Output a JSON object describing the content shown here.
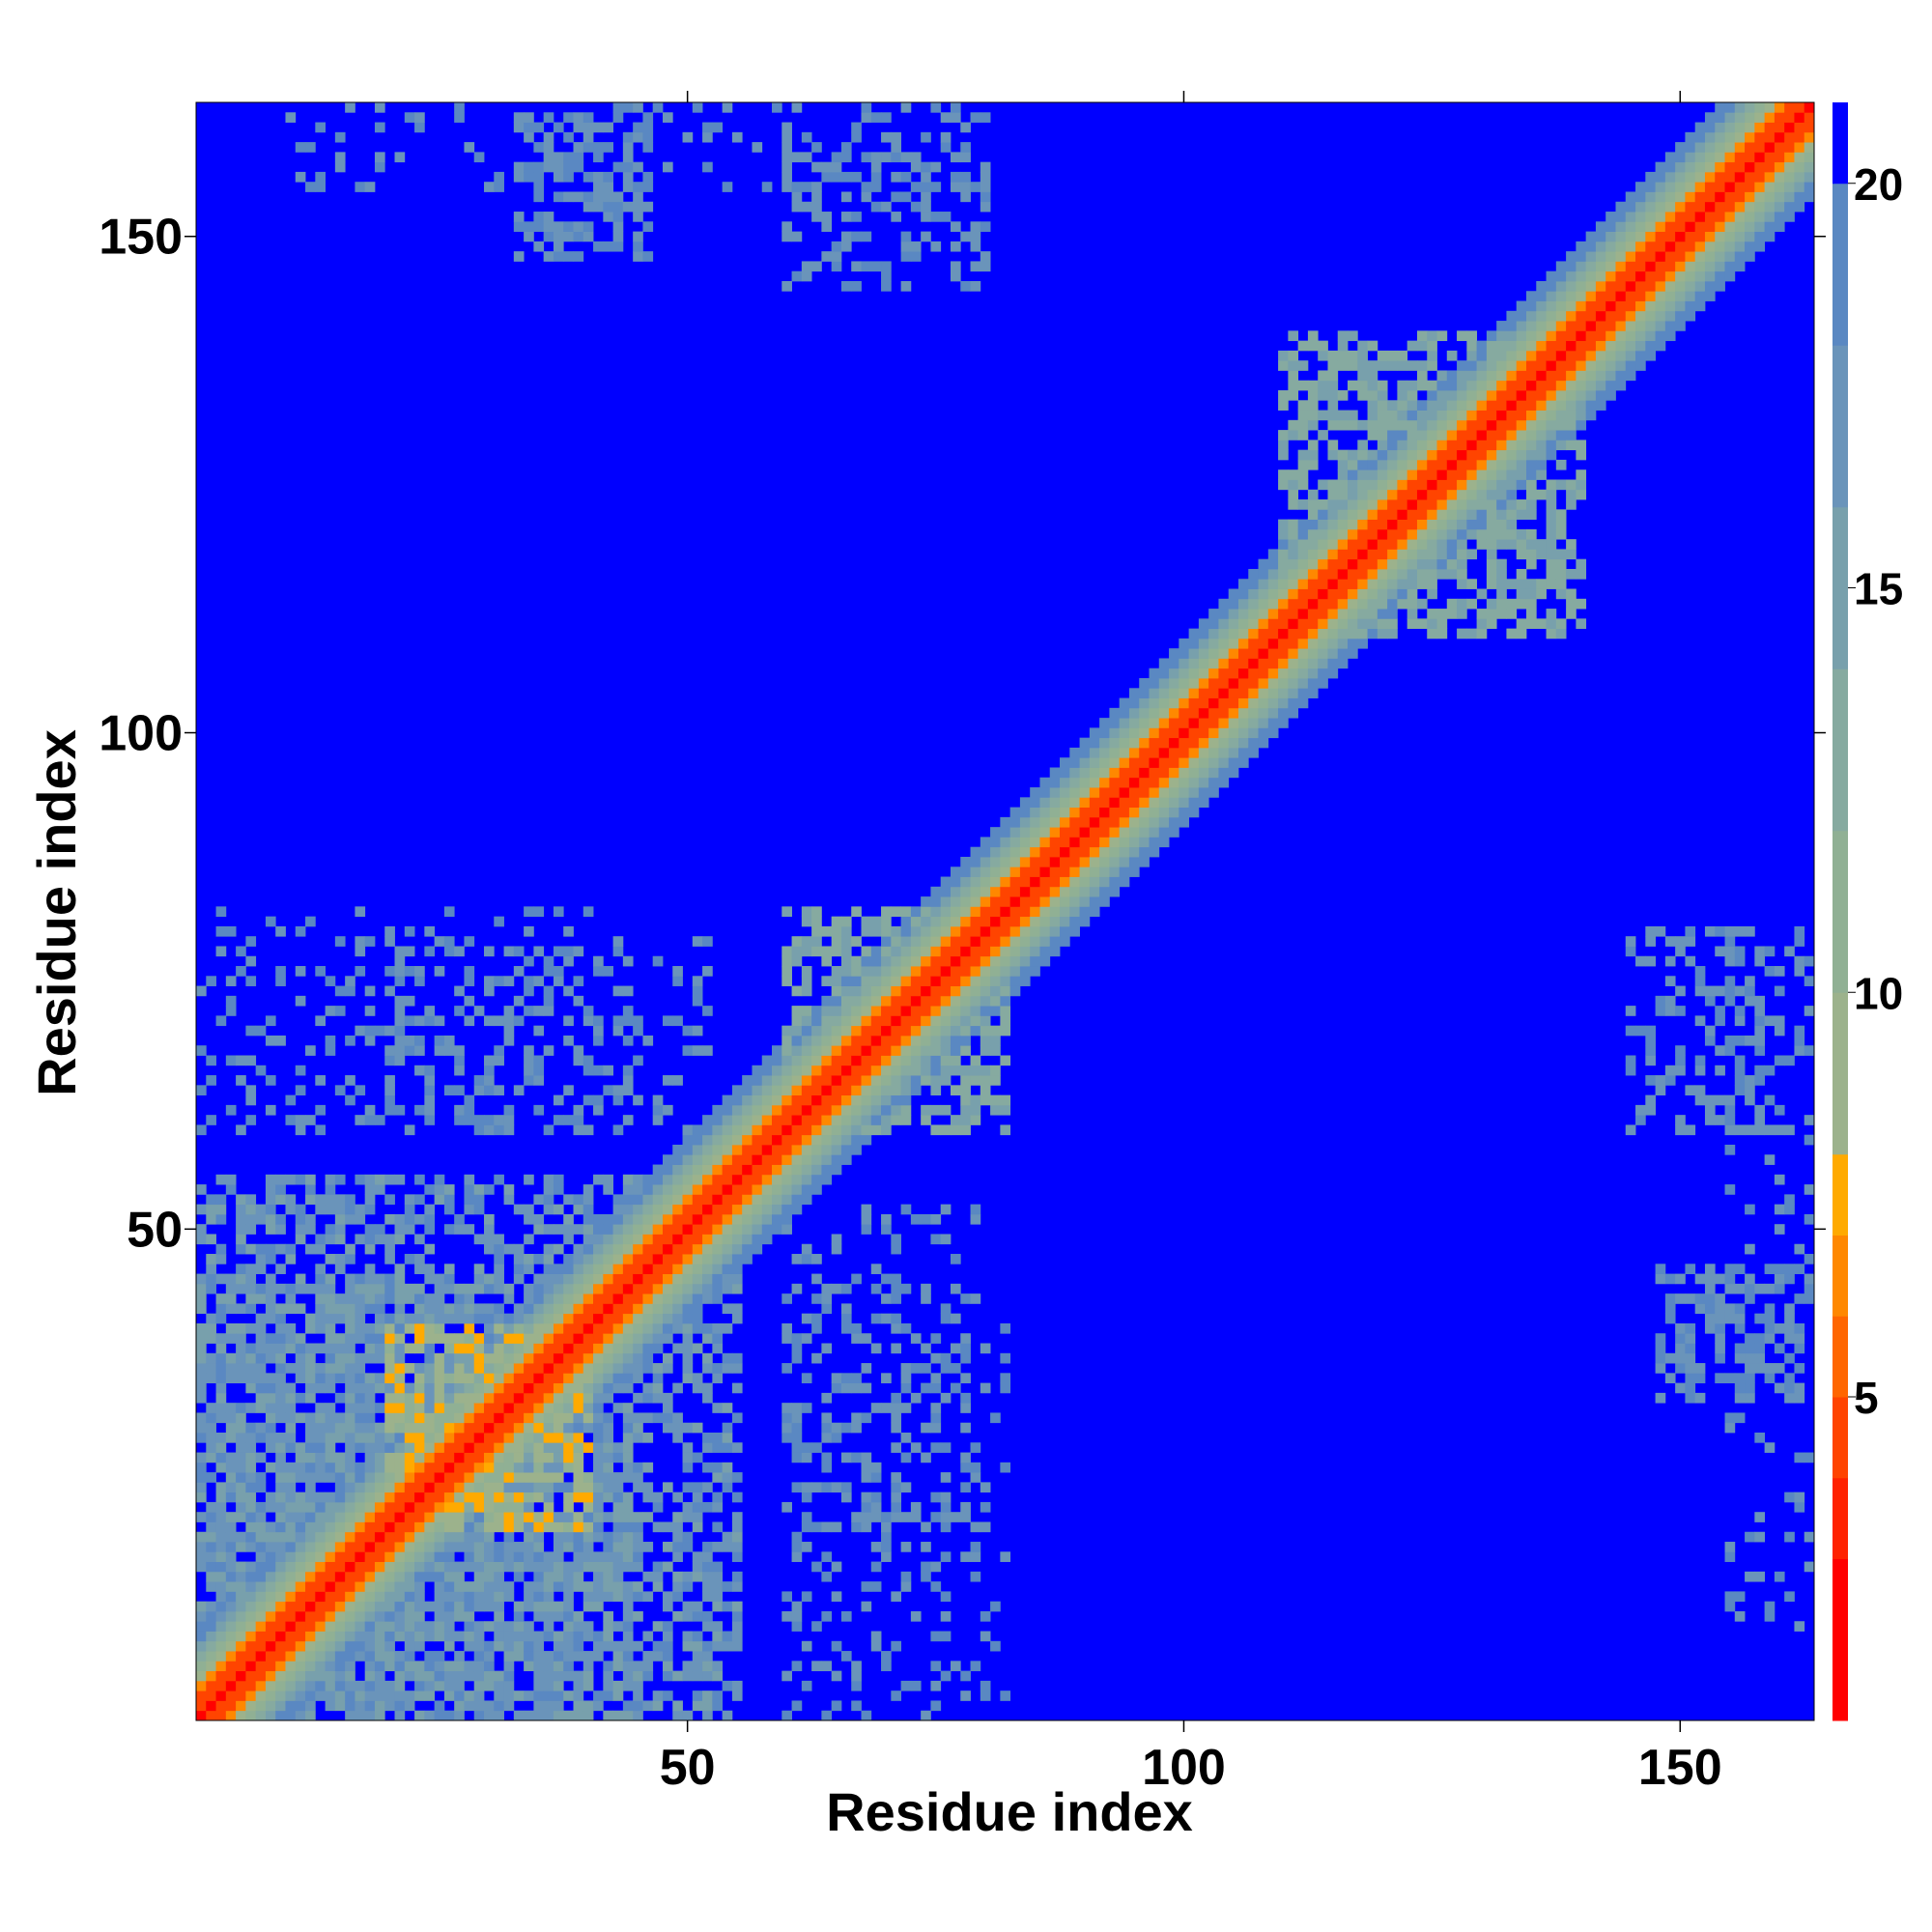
{
  "chart_data": {
    "type": "heatmap",
    "title": "",
    "xlabel": "Residue index",
    "ylabel": "Residue index",
    "n_residues": 163,
    "xlim": [
      0.5,
      163.5
    ],
    "ylim": [
      0.5,
      163.5
    ],
    "x_ticks": [
      50,
      100,
      150
    ],
    "y_ticks": [
      50,
      100,
      150
    ],
    "x_tick_labels": [
      "50",
      "100",
      "150"
    ],
    "y_tick_labels": [
      "50",
      "100",
      "150"
    ],
    "colorbar": {
      "range": [
        1,
        21
      ],
      "ticks": [
        5,
        10,
        15,
        20
      ],
      "tick_labels": [
        "5",
        "10",
        "15",
        "20"
      ],
      "bins": [
        {
          "min": 1,
          "max": 3,
          "color": "#ff0000"
        },
        {
          "min": 3,
          "max": 4,
          "color": "#ff2200"
        },
        {
          "min": 4,
          "max": 5,
          "color": "#ff4400"
        },
        {
          "min": 5,
          "max": 6,
          "color": "#ff6600"
        },
        {
          "min": 6,
          "max": 7,
          "color": "#ff8800"
        },
        {
          "min": 7,
          "max": 8,
          "color": "#ffaa00"
        },
        {
          "min": 8,
          "max": 10,
          "color": "#9cb28c"
        },
        {
          "min": 10,
          "max": 12,
          "color": "#90b094"
        },
        {
          "min": 12,
          "max": 14,
          "color": "#86aaa0"
        },
        {
          "min": 14,
          "max": 16,
          "color": "#78a0ac"
        },
        {
          "min": 16,
          "max": 18,
          "color": "#6a94ba"
        },
        {
          "min": 18,
          "max": 20,
          "color": "#5a88c2"
        },
        {
          "min": 20,
          "max": 21,
          "color": "#0000ff"
        }
      ]
    },
    "description_of_values": "Pairwise residue distance map (symmetric). Diagonal band of values < 5 (red) widening through orange and grey-green (8-16) to blue (>20). Lower-left block (residues 1-45) densely populated with 15-20 contacts; off-diagonal sparse contacts near residues 60-80 and 145-160.",
    "contact_regions": [
      {
        "x": [
          1,
          45
        ],
        "y": [
          1,
          55
        ],
        "density": 0.55,
        "value": 17
      },
      {
        "x": [
          20,
          52
        ],
        "y": [
          60,
          80
        ],
        "density": 0.18,
        "value": 18
      },
      {
        "x": [
          60,
          82
        ],
        "y": [
          1,
          45
        ],
        "density": 0.18,
        "value": 18
      },
      {
        "x": [
          33,
          46
        ],
        "y": [
          148,
          162
        ],
        "density": 0.25,
        "value": 18
      },
      {
        "x": [
          148,
          162
        ],
        "y": [
          33,
          46
        ],
        "density": 0.25,
        "value": 18
      },
      {
        "x": [
          145,
          158
        ],
        "y": [
          60,
          80
        ],
        "density": 0.2,
        "value": 18
      },
      {
        "x": [
          60,
          80
        ],
        "y": [
          145,
          158
        ],
        "density": 0.2,
        "value": 18
      },
      {
        "x": [
          10,
          80
        ],
        "y": [
          155,
          163
        ],
        "density": 0.08,
        "value": 18
      },
      {
        "x": [
          155,
          163
        ],
        "y": [
          10,
          80
        ],
        "density": 0.08,
        "value": 18
      },
      {
        "x": [
          110,
          140
        ],
        "y": [
          110,
          140
        ],
        "density": 0.35,
        "value": 14
      },
      {
        "x": [
          60,
          82
        ],
        "y": [
          60,
          82
        ],
        "density": 0.35,
        "value": 14
      },
      {
        "x": [
          20,
          40
        ],
        "y": [
          20,
          40
        ],
        "density": 0.35,
        "value": 9
      }
    ]
  }
}
